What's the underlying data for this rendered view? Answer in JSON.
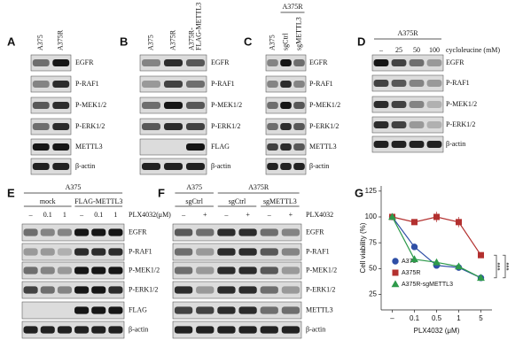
{
  "panels": [
    {
      "label": "A",
      "columns": [
        [
          "A375"
        ],
        [
          "A375R"
        ]
      ],
      "rows": [
        "EGFR",
        "P-RAF1",
        "P-MEK1/2",
        "P-ERK1/2",
        "METTL3",
        "β-actin"
      ]
    },
    {
      "label": "B",
      "columns": [
        [
          "A375"
        ],
        [
          "A375R"
        ],
        [
          "A375R-",
          "FLAG-METTL3"
        ]
      ],
      "rows": [
        "EGFR",
        "P-RAF1",
        "P-MEK1/2",
        "P-ERK1/2",
        "FLAG",
        "β-actin"
      ]
    },
    {
      "label": "C",
      "headers": [
        "A375R"
      ],
      "columns": [
        [
          "A375"
        ],
        [
          "sgCtrl"
        ],
        [
          "sgMETTL3"
        ]
      ],
      "rows": [
        "EGFR",
        "P-RAF1",
        "P-MEK1/2",
        "P-ERK1/2",
        "METTL3",
        "β-actin"
      ]
    },
    {
      "label": "D",
      "headers": [
        "A375R"
      ],
      "lanes": [
        "–",
        "25",
        "50",
        "100"
      ],
      "treatment": "cycloleucine (mM)",
      "rows": [
        "EGFR",
        "P-RAF1",
        "P-MEK1/2",
        "P-ERK1/2",
        "β-actin"
      ]
    },
    {
      "label": "E",
      "headers": [
        "A375"
      ],
      "groups": [
        "mock",
        "FLAG-METTL3"
      ],
      "lanes": [
        "–",
        "0.1",
        "1",
        "–",
        "0.1",
        "1"
      ],
      "treatment": "PLX4032(μM)",
      "rows": [
        "EGFR",
        "P-RAF1",
        "P-MEK1/2",
        "P-ERK1/2",
        "FLAG",
        "β-actin"
      ]
    },
    {
      "label": "F",
      "headers": [
        "A375",
        "A375R"
      ],
      "groups": [
        "sgCtrl",
        "sgCtrl",
        "sgMETTL3"
      ],
      "lanes": [
        "–",
        "+",
        "–",
        "+",
        "–",
        "+"
      ],
      "treatment": "PLX4032",
      "rows": [
        "EGFR",
        "P-RAF1",
        "P-MEK1/2",
        "P-ERK1/2",
        "METTL3",
        "β-actin"
      ]
    }
  ],
  "chart_data": {
    "type": "line",
    "label": "G",
    "xlabel": "PLX4032 (μM)",
    "ylabel": "Cell viability (%)",
    "categories": [
      "–",
      "0.1",
      "0.5",
      "1",
      "5"
    ],
    "ylim": [
      10,
      130
    ],
    "yticks": [
      25,
      50,
      75,
      100,
      125
    ],
    "series": [
      {
        "name": "A375",
        "color": "#2f4fa6",
        "marker": "circle",
        "values": [
          100,
          71,
          53,
          51,
          41
        ],
        "errors": [
          1,
          2,
          1,
          1,
          2
        ]
      },
      {
        "name": "A375R",
        "color": "#b3302f",
        "marker": "square",
        "values": [
          100,
          95,
          100,
          95,
          63
        ],
        "errors": [
          1,
          2,
          5,
          5,
          2
        ]
      },
      {
        "name": "A375R-sgMETTL3",
        "color": "#2e9a4b",
        "marker": "triangle",
        "values": [
          100,
          59,
          56,
          52,
          41
        ],
        "errors": [
          1,
          1,
          1,
          1,
          1
        ]
      }
    ],
    "annotations": [
      "***",
      "***"
    ]
  }
}
